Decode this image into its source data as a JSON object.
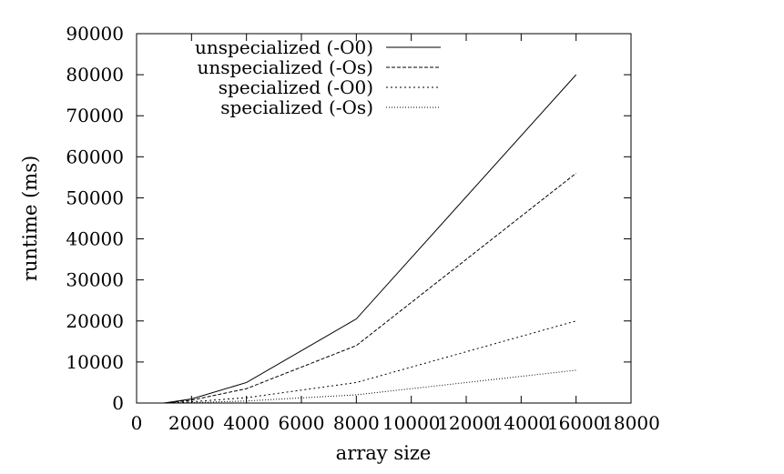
{
  "chart_data": {
    "type": "line",
    "xlabel": "array size",
    "ylabel": "runtime (ms)",
    "xlim": [
      0,
      18000
    ],
    "ylim": [
      0,
      90000
    ],
    "xticks": [
      0,
      2000,
      4000,
      6000,
      8000,
      10000,
      12000,
      14000,
      16000,
      18000
    ],
    "yticks": [
      0,
      10000,
      20000,
      30000,
      40000,
      50000,
      60000,
      70000,
      80000,
      90000
    ],
    "grid": false,
    "legend_position": "top-left",
    "x": [
      1000,
      2000,
      4000,
      8000,
      16000
    ],
    "series": [
      {
        "name": "unspecialized (-O0)",
        "values": [
          0,
          1000,
          5000,
          20500,
          80000
        ],
        "dash": "solid"
      },
      {
        "name": "unspecialized (-Os)",
        "values": [
          0,
          700,
          3500,
          14000,
          56000
        ],
        "dash": "dashed"
      },
      {
        "name": "specialized (-O0)",
        "values": [
          0,
          300,
          1300,
          5000,
          20000
        ],
        "dash": "dotted"
      },
      {
        "name": "specialized (-Os)",
        "values": [
          0,
          100,
          500,
          2000,
          8000
        ],
        "dash": "fine-dotted"
      }
    ]
  }
}
